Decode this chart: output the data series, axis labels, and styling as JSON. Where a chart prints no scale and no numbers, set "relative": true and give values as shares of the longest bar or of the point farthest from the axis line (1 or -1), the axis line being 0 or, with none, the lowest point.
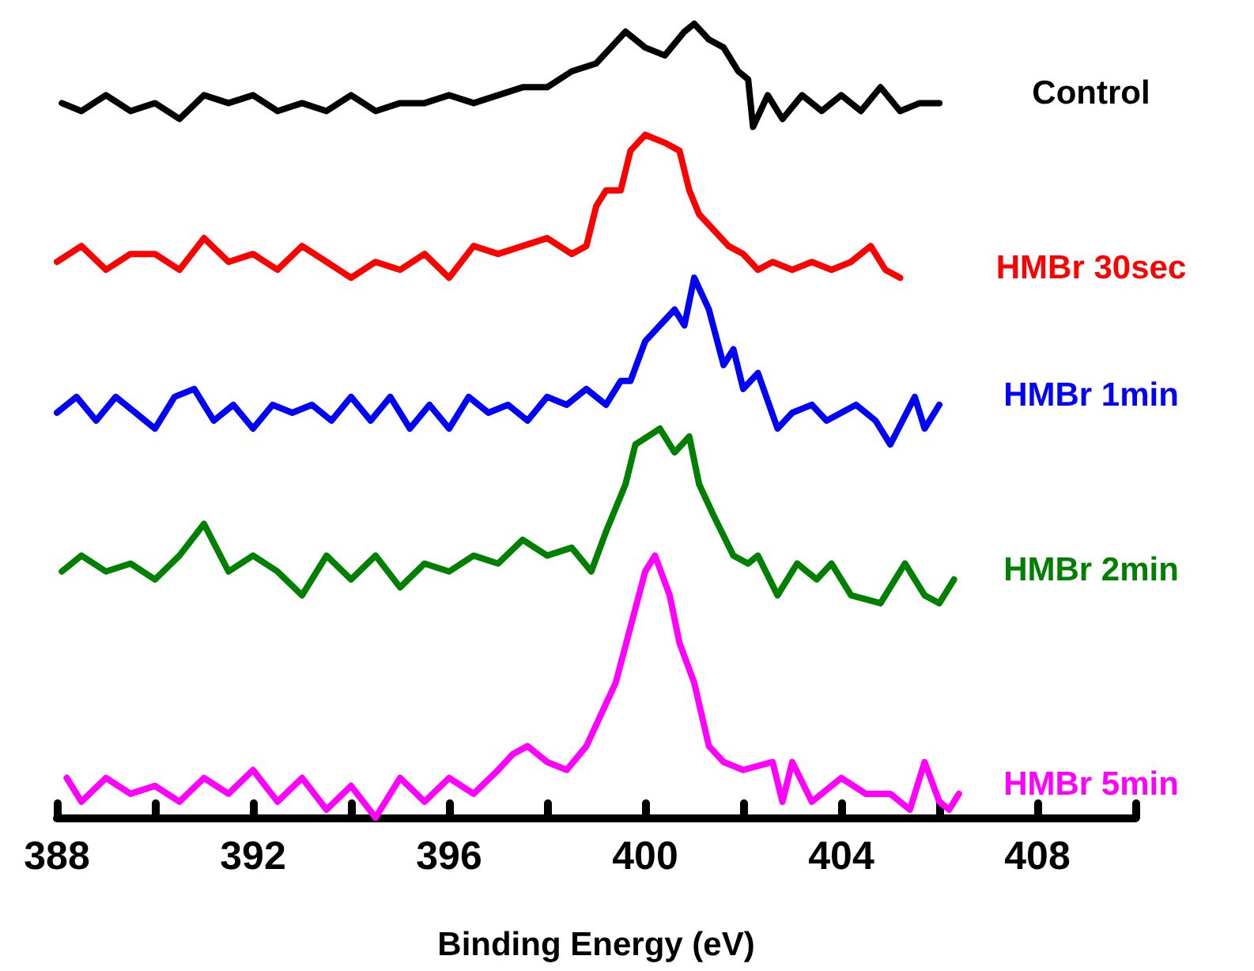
{
  "chart_data": {
    "type": "line",
    "xlabel": "Binding Energy (eV)",
    "relative": true,
    "marker": "none",
    "xlim": [
      388,
      410
    ],
    "xticks": [
      388,
      {
        "value": 390,
        "label": null
      },
      392,
      {
        "value": 394,
        "label": null
      },
      396,
      {
        "value": 398,
        "label": null
      },
      400,
      {
        "value": 402,
        "label": null
      },
      404,
      {
        "value": 406,
        "label": null
      },
      408,
      {
        "value": 410,
        "label": null
      }
    ],
    "series": [
      {
        "name": "Control",
        "color": "#000000",
        "x": [
          388.1,
          388.5,
          389.0,
          389.5,
          390.0,
          390.5,
          391.0,
          391.5,
          392.0,
          392.5,
          393.0,
          393.5,
          394.0,
          394.5,
          395.0,
          395.5,
          396.0,
          396.5,
          397.0,
          397.5,
          398.0,
          398.5,
          399.0,
          399.3,
          399.6,
          400.0,
          400.4,
          400.8,
          401.0,
          401.3,
          401.6,
          401.9,
          402.1,
          402.2,
          402.5,
          402.8,
          403.2,
          403.6,
          404.0,
          404.4,
          404.8,
          405.2,
          405.6,
          406.0
        ],
        "values": [
          0.9,
          0.89,
          0.91,
          0.89,
          0.9,
          0.88,
          0.91,
          0.9,
          0.91,
          0.89,
          0.9,
          0.89,
          0.91,
          0.89,
          0.9,
          0.9,
          0.91,
          0.9,
          0.91,
          0.92,
          0.92,
          0.94,
          0.95,
          0.97,
          0.99,
          0.97,
          0.96,
          0.99,
          1.0,
          0.98,
          0.97,
          0.94,
          0.93,
          0.87,
          0.91,
          0.88,
          0.91,
          0.89,
          0.91,
          0.89,
          0.92,
          0.89,
          0.9,
          0.9
        ]
      },
      {
        "name": "HMBr 30sec",
        "color": "#ff0000",
        "x": [
          388.0,
          388.5,
          389.0,
          389.5,
          390.0,
          390.5,
          391.0,
          391.5,
          392.0,
          392.5,
          393.0,
          393.5,
          394.0,
          394.5,
          395.0,
          395.5,
          396.0,
          396.5,
          397.0,
          397.5,
          398.0,
          398.5,
          398.8,
          399.0,
          399.2,
          399.5,
          399.7,
          400.0,
          400.4,
          400.7,
          400.9,
          401.1,
          401.4,
          401.7,
          402.0,
          402.3,
          402.6,
          403.0,
          403.4,
          403.8,
          404.2,
          404.6,
          404.9,
          405.2
        ],
        "values": [
          0.7,
          0.72,
          0.69,
          0.71,
          0.71,
          0.69,
          0.73,
          0.7,
          0.71,
          0.69,
          0.72,
          0.7,
          0.68,
          0.7,
          0.69,
          0.71,
          0.68,
          0.72,
          0.71,
          0.72,
          0.73,
          0.71,
          0.72,
          0.77,
          0.79,
          0.79,
          0.84,
          0.86,
          0.85,
          0.84,
          0.79,
          0.76,
          0.74,
          0.72,
          0.71,
          0.69,
          0.7,
          0.69,
          0.7,
          0.69,
          0.7,
          0.72,
          0.69,
          0.68
        ]
      },
      {
        "name": "HMBr 1min",
        "color": "#0000ff",
        "x": [
          388.0,
          388.4,
          388.8,
          389.2,
          389.6,
          390.0,
          390.4,
          390.8,
          391.2,
          391.6,
          392.0,
          392.4,
          392.8,
          393.2,
          393.6,
          394.0,
          394.4,
          394.8,
          395.2,
          395.6,
          396.0,
          396.4,
          396.8,
          397.2,
          397.6,
          398.0,
          398.4,
          398.8,
          399.2,
          399.5,
          399.7,
          400.0,
          400.3,
          400.6,
          400.8,
          401.0,
          401.3,
          401.6,
          401.8,
          402.0,
          402.3,
          402.7,
          403.0,
          403.4,
          403.7,
          404.0,
          404.3,
          404.7,
          405.0,
          405.5,
          405.7,
          406.0
        ],
        "values": [
          0.51,
          0.53,
          0.5,
          0.53,
          0.51,
          0.49,
          0.53,
          0.54,
          0.5,
          0.52,
          0.49,
          0.52,
          0.51,
          0.52,
          0.5,
          0.53,
          0.5,
          0.53,
          0.49,
          0.52,
          0.49,
          0.53,
          0.51,
          0.52,
          0.5,
          0.53,
          0.52,
          0.54,
          0.52,
          0.55,
          0.55,
          0.6,
          0.62,
          0.64,
          0.62,
          0.68,
          0.64,
          0.57,
          0.59,
          0.54,
          0.56,
          0.49,
          0.51,
          0.52,
          0.5,
          0.51,
          0.52,
          0.5,
          0.47,
          0.53,
          0.49,
          0.52
        ]
      },
      {
        "name": "HMBr 2min",
        "color": "#008000",
        "x": [
          388.1,
          388.5,
          389.0,
          389.5,
          390.0,
          390.5,
          391.0,
          391.5,
          392.0,
          392.5,
          393.0,
          393.5,
          394.0,
          394.5,
          395.0,
          395.5,
          396.0,
          396.5,
          397.0,
          397.5,
          398.0,
          398.5,
          398.9,
          399.2,
          399.6,
          399.8,
          400.3,
          400.6,
          400.9,
          401.1,
          401.4,
          401.8,
          402.1,
          402.3,
          402.7,
          403.1,
          403.5,
          403.8,
          404.2,
          404.8,
          405.3,
          405.7,
          406.0,
          406.3
        ],
        "values": [
          0.31,
          0.33,
          0.31,
          0.32,
          0.3,
          0.33,
          0.37,
          0.31,
          0.33,
          0.31,
          0.28,
          0.33,
          0.3,
          0.33,
          0.29,
          0.32,
          0.31,
          0.33,
          0.32,
          0.35,
          0.33,
          0.34,
          0.31,
          0.36,
          0.42,
          0.47,
          0.49,
          0.46,
          0.48,
          0.42,
          0.38,
          0.33,
          0.32,
          0.33,
          0.28,
          0.32,
          0.3,
          0.32,
          0.28,
          0.27,
          0.32,
          0.28,
          0.27,
          0.3
        ]
      },
      {
        "name": "HMBr 5min",
        "color": "#ff00ff",
        "x": [
          388.2,
          388.5,
          389.0,
          389.5,
          390.0,
          390.5,
          391.0,
          391.5,
          392.0,
          392.5,
          393.0,
          393.5,
          394.0,
          394.5,
          395.0,
          395.5,
          396.0,
          396.5,
          397.0,
          397.3,
          397.6,
          398.0,
          398.4,
          398.8,
          399.1,
          399.4,
          399.7,
          400.0,
          400.2,
          400.5,
          400.7,
          401.0,
          401.3,
          401.6,
          402.0,
          402.6,
          402.8,
          403.0,
          403.4,
          404.0,
          404.5,
          405.0,
          405.4,
          405.7,
          406.0,
          406.2,
          406.4
        ],
        "values": [
          0.05,
          0.02,
          0.05,
          0.03,
          0.04,
          0.02,
          0.05,
          0.03,
          0.06,
          0.02,
          0.05,
          0.01,
          0.04,
          0.0,
          0.05,
          0.02,
          0.05,
          0.03,
          0.06,
          0.08,
          0.09,
          0.07,
          0.06,
          0.09,
          0.13,
          0.17,
          0.24,
          0.31,
          0.33,
          0.28,
          0.22,
          0.17,
          0.09,
          0.07,
          0.06,
          0.07,
          0.02,
          0.07,
          0.02,
          0.05,
          0.03,
          0.03,
          0.01,
          0.07,
          0.02,
          0.01,
          0.03
        ]
      }
    ]
  }
}
